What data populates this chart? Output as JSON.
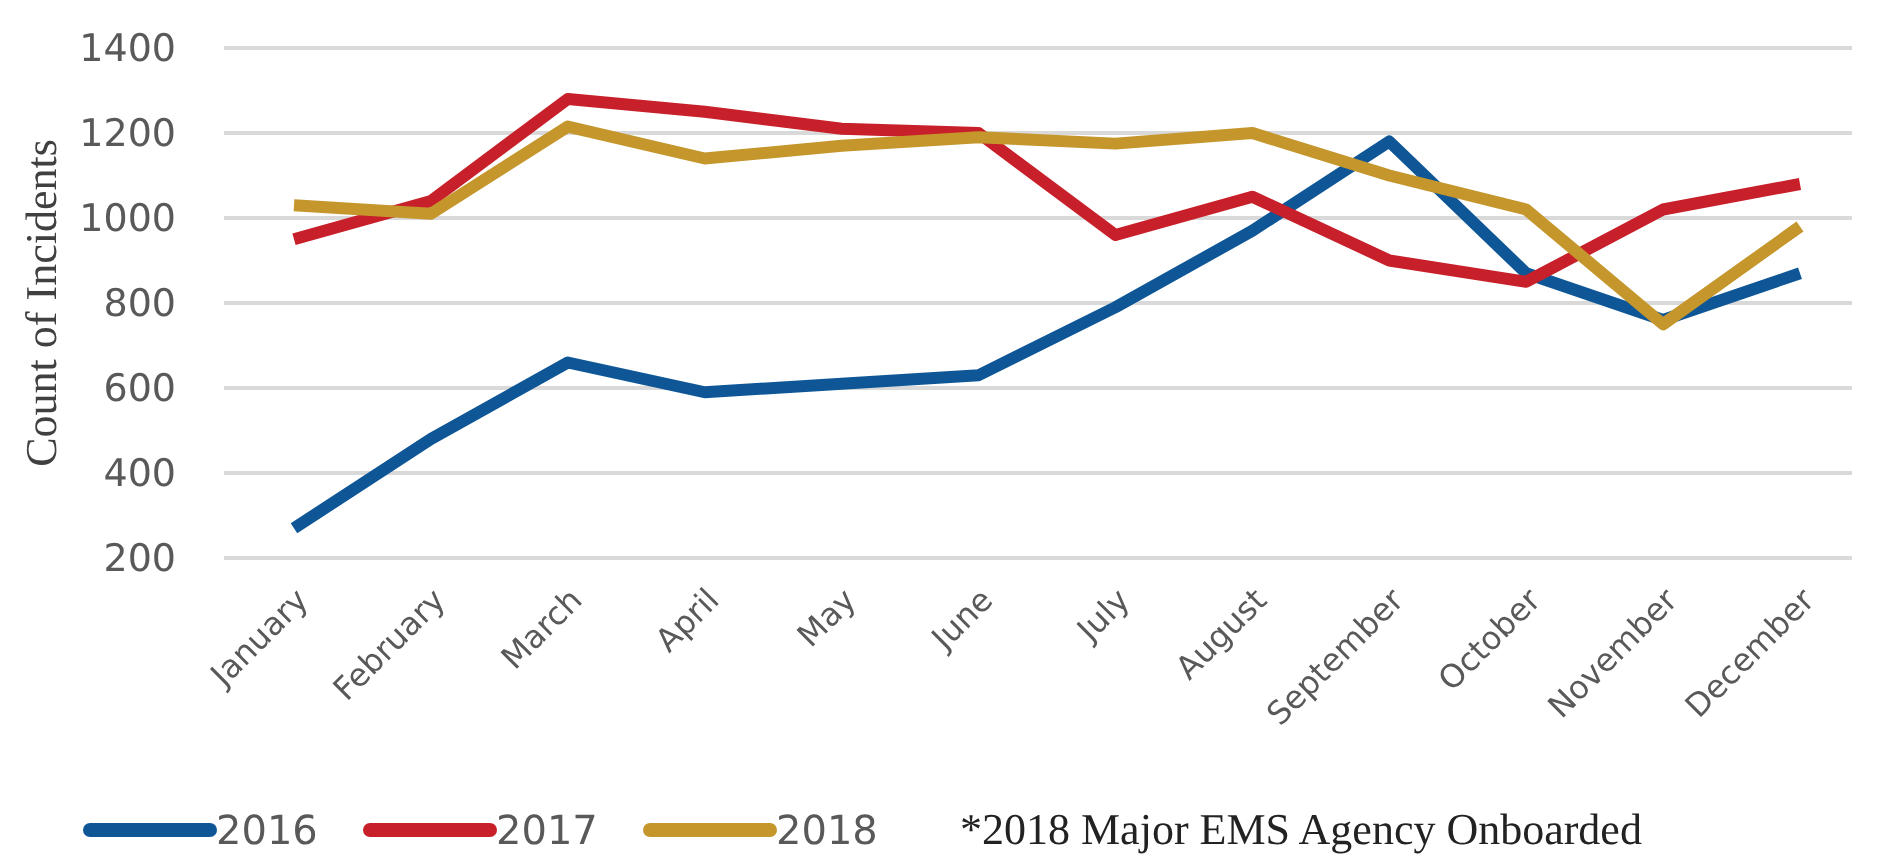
{
  "chart_data": {
    "type": "line",
    "ylabel": "Count of Incidents",
    "categories": [
      "January",
      "February",
      "March",
      "April",
      "May",
      "June",
      "July",
      "August",
      "September",
      "October",
      "November",
      "December"
    ],
    "series": [
      {
        "name": "2016",
        "color": "#0e5696",
        "values": [
          270,
          480,
          660,
          590,
          610,
          630,
          790,
          970,
          1180,
          870,
          760,
          870
        ]
      },
      {
        "name": "2017",
        "color": "#c8202a",
        "values": [
          950,
          1040,
          1280,
          1250,
          1210,
          1200,
          960,
          1050,
          900,
          850,
          1020,
          1080
        ]
      },
      {
        "name": "2018",
        "color": "#c4962c",
        "values": [
          1030,
          1010,
          1215,
          1140,
          1170,
          1190,
          1175,
          1200,
          1100,
          1020,
          750,
          980
        ]
      }
    ],
    "ylim": [
      200,
      1400
    ],
    "yticks": [
      200,
      400,
      600,
      800,
      1000,
      1200,
      1400
    ],
    "grid": "y",
    "legend": "bottom",
    "annotations": [
      "*2018 Major EMS Agency Onboarded"
    ]
  }
}
